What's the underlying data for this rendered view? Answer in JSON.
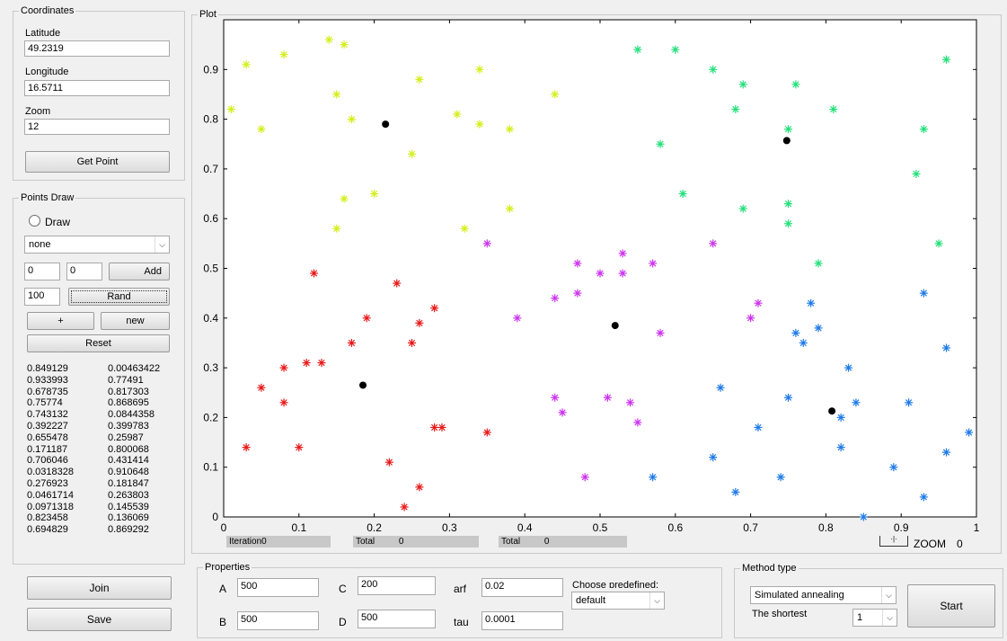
{
  "coordinates": {
    "legend": "Coordinates",
    "latitude_label": "Latitude",
    "latitude_value": "49.2319",
    "longitude_label": "Longitude",
    "longitude_value": "16.5711",
    "zoom_label": "Zoom",
    "zoom_value": "12",
    "get_point_label": "Get Point"
  },
  "points_draw": {
    "legend": "Points Draw",
    "draw_label": "Draw",
    "mode_value": "none",
    "x_value": "0",
    "y_value": "0",
    "add_label": "Add",
    "rand_count": "100",
    "rand_label": "Rand",
    "plus_label": "+",
    "new_label": "new",
    "reset_label": "Reset",
    "point_list": [
      [
        "0.849129",
        "0.00463422"
      ],
      [
        "0.933993",
        "0.77491"
      ],
      [
        "0.678735",
        "0.817303"
      ],
      [
        "0.75774",
        "0.868695"
      ],
      [
        "0.743132",
        "0.0844358"
      ],
      [
        "0.392227",
        "0.399783"
      ],
      [
        "0.655478",
        "0.25987"
      ],
      [
        "0.171187",
        "0.800068"
      ],
      [
        "0.706046",
        "0.431414"
      ],
      [
        "0.0318328",
        "0.910648"
      ],
      [
        "0.276923",
        "0.181847"
      ],
      [
        "0.0461714",
        "0.263803"
      ],
      [
        "0.0971318",
        "0.145539"
      ],
      [
        "0.823458",
        "0.136069"
      ],
      [
        "0.694829",
        "0.869292"
      ]
    ]
  },
  "join_label": "Join",
  "save_label": "Save",
  "plot": {
    "legend": "Plot",
    "iteration_label": "Iteration0",
    "total1_label": "Total",
    "total1_value": "0",
    "total2_label": "Total",
    "total2_value": "0",
    "zoom_label": "ZOOM",
    "zoom_value": "0"
  },
  "properties": {
    "legend": "Properties",
    "a_label": "A",
    "a_value": "500",
    "b_label": "B",
    "b_value": "500",
    "c_label": "C",
    "c_value": "200",
    "d_label": "D",
    "d_value": "500",
    "arf_label": "arf",
    "arf_value": "0.02",
    "tau_label": "tau",
    "tau_value": "0.0001",
    "predefined_label": "Choose predefined:",
    "predefined_value": "default"
  },
  "method": {
    "legend": "Method type",
    "method_value": "Simulated annealing",
    "shortest_label": "The shortest",
    "shortest_value": "1",
    "start_label": "Start"
  },
  "colors": {
    "yellow": "#d4ee1a",
    "green": "#22e07a",
    "magenta": "#cc33ee",
    "red": "#e81818",
    "blue": "#1e7ae8",
    "center": "#000000"
  },
  "chart_data": {
    "type": "scatter",
    "title": "",
    "xlim": [
      0,
      1
    ],
    "ylim": [
      0,
      1
    ],
    "xticks": [
      "0",
      "0.1",
      "0.2",
      "0.3",
      "0.4",
      "0.5",
      "0.6",
      "0.7",
      "0.8",
      "0.9",
      "1"
    ],
    "yticks": [
      "0",
      "0.1",
      "0.2",
      "0.3",
      "0.4",
      "0.5",
      "0.6",
      "0.7",
      "0.8",
      "0.9"
    ],
    "series": [
      {
        "color": "#d4ee1a",
        "marker": "star",
        "points": [
          [
            0.01,
            0.82
          ],
          [
            0.03,
            0.91
          ],
          [
            0.05,
            0.78
          ],
          [
            0.08,
            0.93
          ],
          [
            0.14,
            0.96
          ],
          [
            0.15,
            0.85
          ],
          [
            0.16,
            0.95
          ],
          [
            0.17,
            0.8
          ],
          [
            0.16,
            0.64
          ],
          [
            0.15,
            0.58
          ],
          [
            0.2,
            0.65
          ],
          [
            0.25,
            0.73
          ],
          [
            0.26,
            0.88
          ],
          [
            0.31,
            0.81
          ],
          [
            0.32,
            0.58
          ],
          [
            0.34,
            0.9
          ],
          [
            0.34,
            0.79
          ],
          [
            0.38,
            0.78
          ],
          [
            0.38,
            0.62
          ],
          [
            0.44,
            0.85
          ]
        ]
      },
      {
        "color": "#22e07a",
        "marker": "star",
        "points": [
          [
            0.55,
            0.94
          ],
          [
            0.6,
            0.94
          ],
          [
            0.58,
            0.75
          ],
          [
            0.61,
            0.65
          ],
          [
            0.65,
            0.9
          ],
          [
            0.68,
            0.82
          ],
          [
            0.69,
            0.87
          ],
          [
            0.69,
            0.62
          ],
          [
            0.75,
            0.59
          ],
          [
            0.75,
            0.78
          ],
          [
            0.76,
            0.87
          ],
          [
            0.75,
            0.63
          ],
          [
            0.79,
            0.51
          ],
          [
            0.81,
            0.82
          ],
          [
            0.92,
            0.69
          ],
          [
            0.93,
            0.78
          ],
          [
            0.95,
            0.55
          ],
          [
            0.96,
            0.92
          ]
        ]
      },
      {
        "color": "#cc33ee",
        "marker": "star",
        "points": [
          [
            0.35,
            0.55
          ],
          [
            0.39,
            0.4
          ],
          [
            0.44,
            0.44
          ],
          [
            0.47,
            0.51
          ],
          [
            0.47,
            0.45
          ],
          [
            0.5,
            0.49
          ],
          [
            0.53,
            0.53
          ],
          [
            0.53,
            0.49
          ],
          [
            0.57,
            0.51
          ],
          [
            0.58,
            0.37
          ],
          [
            0.65,
            0.55
          ],
          [
            0.7,
            0.4
          ],
          [
            0.71,
            0.43
          ],
          [
            0.44,
            0.24
          ],
          [
            0.45,
            0.21
          ],
          [
            0.48,
            0.08
          ],
          [
            0.51,
            0.24
          ],
          [
            0.54,
            0.23
          ],
          [
            0.55,
            0.19
          ]
        ]
      },
      {
        "color": "#e81818",
        "marker": "star",
        "points": [
          [
            0.03,
            0.14
          ],
          [
            0.05,
            0.26
          ],
          [
            0.08,
            0.23
          ],
          [
            0.08,
            0.3
          ],
          [
            0.1,
            0.14
          ],
          [
            0.11,
            0.31
          ],
          [
            0.12,
            0.49
          ],
          [
            0.13,
            0.31
          ],
          [
            0.17,
            0.35
          ],
          [
            0.19,
            0.4
          ],
          [
            0.22,
            0.11
          ],
          [
            0.23,
            0.47
          ],
          [
            0.24,
            0.02
          ],
          [
            0.25,
            0.35
          ],
          [
            0.26,
            0.39
          ],
          [
            0.26,
            0.06
          ],
          [
            0.28,
            0.42
          ],
          [
            0.28,
            0.18
          ],
          [
            0.29,
            0.18
          ],
          [
            0.35,
            0.17
          ]
        ]
      },
      {
        "color": "#1e7ae8",
        "marker": "star",
        "points": [
          [
            0.57,
            0.08
          ],
          [
            0.65,
            0.12
          ],
          [
            0.66,
            0.26
          ],
          [
            0.68,
            0.05
          ],
          [
            0.71,
            0.18
          ],
          [
            0.74,
            0.08
          ],
          [
            0.75,
            0.24
          ],
          [
            0.76,
            0.37
          ],
          [
            0.77,
            0.35
          ],
          [
            0.78,
            0.43
          ],
          [
            0.79,
            0.38
          ],
          [
            0.82,
            0.14
          ],
          [
            0.82,
            0.2
          ],
          [
            0.83,
            0.3
          ],
          [
            0.84,
            0.23
          ],
          [
            0.85,
            0.0
          ],
          [
            0.89,
            0.1
          ],
          [
            0.91,
            0.23
          ],
          [
            0.93,
            0.04
          ],
          [
            0.93,
            0.45
          ],
          [
            0.96,
            0.34
          ],
          [
            0.96,
            0.13
          ],
          [
            0.99,
            0.17
          ]
        ]
      },
      {
        "color": "#000000",
        "marker": "dot",
        "points": [
          [
            0.215,
            0.79
          ],
          [
            0.185,
            0.265
          ],
          [
            0.52,
            0.385
          ],
          [
            0.748,
            0.757
          ],
          [
            0.808,
            0.213
          ]
        ]
      }
    ]
  }
}
